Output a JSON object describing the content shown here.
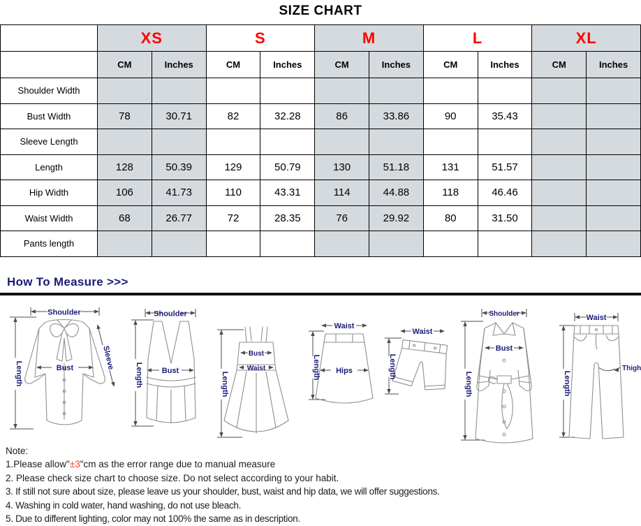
{
  "title": "SIZE CHART",
  "table": {
    "units": [
      "CM",
      "Inches"
    ],
    "sizes": [
      {
        "label": "XS",
        "shaded": true
      },
      {
        "label": "S",
        "shaded": false
      },
      {
        "label": "M",
        "shaded": true
      },
      {
        "label": "L",
        "shaded": false
      },
      {
        "label": "XL",
        "shaded": true
      }
    ],
    "rows": [
      {
        "label": "Shoulder Width",
        "values": [
          "",
          "",
          "",
          "",
          "",
          "",
          "",
          "",
          "",
          ""
        ]
      },
      {
        "label": "Bust Width",
        "values": [
          "78",
          "30.71",
          "82",
          "32.28",
          "86",
          "33.86",
          "90",
          "35.43",
          "",
          ""
        ]
      },
      {
        "label": "Sleeve Length",
        "values": [
          "",
          "",
          "",
          "",
          "",
          "",
          "",
          "",
          "",
          ""
        ]
      },
      {
        "label": "Length",
        "values": [
          "128",
          "50.39",
          "129",
          "50.79",
          "130",
          "51.18",
          "131",
          "51.57",
          "",
          ""
        ]
      },
      {
        "label": "Hip Width",
        "values": [
          "106",
          "41.73",
          "110",
          "43.31",
          "114",
          "44.88",
          "118",
          "46.46",
          "",
          ""
        ]
      },
      {
        "label": "Waist Width",
        "values": [
          "68",
          "26.77",
          "72",
          "28.35",
          "76",
          "29.92",
          "80",
          "31.50",
          "",
          ""
        ]
      },
      {
        "label": "Pants length",
        "values": [
          "",
          "",
          "",
          "",
          "",
          "",
          "",
          "",
          "",
          ""
        ]
      }
    ]
  },
  "measure_section": {
    "heading": "How To Measure >>>"
  },
  "figures": {
    "blouse": {
      "shoulder": "Shoulder",
      "length": "Length",
      "bust": "Bust",
      "sleeve": "Sleeve"
    },
    "tank_top": {
      "shoulder": "Shoulder",
      "length": "Length",
      "bust": "Bust"
    },
    "dress": {
      "length": "Length",
      "bust": "Bust",
      "waist": "Waist"
    },
    "skirt": {
      "waist": "Waist",
      "length": "Length",
      "hips": "Hips"
    },
    "shorts": {
      "waist": "Waist",
      "length": "Length"
    },
    "coat": {
      "shoulder": "Shoulder",
      "length": "Length",
      "bust": "Bust"
    },
    "pants": {
      "waist": "Waist",
      "length": "Length",
      "thigh": "Thigh"
    }
  },
  "notes": {
    "heading": "Note:",
    "note1": {
      "prefix": "1.Please allow\"",
      "highlight": "±3",
      "suffix": "\"cm as the error range due to manual measure"
    },
    "items": [
      "2. Please check size chart to choose size. Do not select according to your habit.",
      "3. If still not sure about size, please leave us your shoulder, bust, waist and hip data, we will offer suggestions.",
      "4. Washing in cold water, hand washing, do not use bleach.",
      "5. Due to different lighting, color may not 100% the same as in description."
    ]
  },
  "colors": {
    "size_label": "#ff0000",
    "column_shade": "#d5dade",
    "measure_heading": "#1b1b78",
    "note_highlight": "#ff3b30",
    "divider": "#111111"
  }
}
